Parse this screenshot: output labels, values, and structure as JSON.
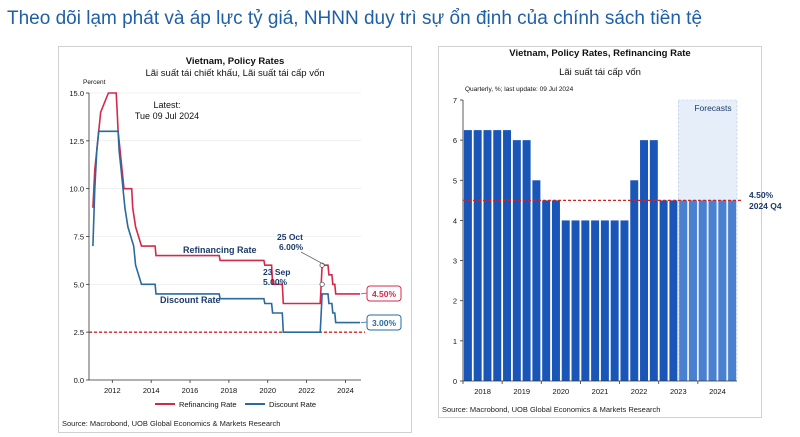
{
  "page": {
    "title": "Theo dõi lạm phát và áp lực tỷ giá, NHNN duy trì sự ổn định của chính sách tiền tệ"
  },
  "colors": {
    "title": "#1f5fa8",
    "refinancing": "#d6284a",
    "discount": "#2a6a9e",
    "bar": "#1a56b8",
    "forecast_bar": "#4a80d0",
    "dashed": "#d62020"
  },
  "chart_data": [
    {
      "type": "line",
      "title": "Vietnam, Policy Rates",
      "subtitle": "Lãi suất tái chiết khấu, Lãi suất tái cấp vốn",
      "ylabel": "Percent",
      "ylim": [
        0,
        15
      ],
      "yticks": [
        "0.0",
        "2.5",
        "5.0",
        "7.5",
        "10.0",
        "12.5",
        "15.0"
      ],
      "xlim": [
        2010.8,
        2024.8
      ],
      "xticks": [
        "2012",
        "2014",
        "2016",
        "2018",
        "2020",
        "2022",
        "2024"
      ],
      "reference_line": 2.5,
      "series": [
        {
          "name": "Refinancing Rate",
          "label": "Refinancing Rate",
          "points": [
            [
              2011.0,
              9
            ],
            [
              2011.1,
              11
            ],
            [
              2011.2,
              12
            ],
            [
              2011.3,
              13
            ],
            [
              2011.4,
              14
            ],
            [
              2011.8,
              15
            ],
            [
              2012.2,
              15
            ],
            [
              2012.25,
              14
            ],
            [
              2012.3,
              13
            ],
            [
              2012.4,
              12
            ],
            [
              2012.5,
              11
            ],
            [
              2012.6,
              10
            ],
            [
              2013.0,
              10
            ],
            [
              2013.05,
              9
            ],
            [
              2013.2,
              8
            ],
            [
              2013.5,
              7
            ],
            [
              2014.2,
              7
            ],
            [
              2014.25,
              6.5
            ],
            [
              2017.5,
              6.5
            ],
            [
              2017.55,
              6.25
            ],
            [
              2019.8,
              6.25
            ],
            [
              2019.85,
              6
            ],
            [
              2020.2,
              6
            ],
            [
              2020.25,
              5
            ],
            [
              2020.75,
              5
            ],
            [
              2020.8,
              4
            ],
            [
              2022.7,
              4
            ],
            [
              2022.75,
              5
            ],
            [
              2022.8,
              6
            ],
            [
              2023.1,
              6
            ],
            [
              2023.15,
              5.5
            ],
            [
              2023.3,
              5.5
            ],
            [
              2023.35,
              5
            ],
            [
              2023.45,
              5
            ],
            [
              2023.5,
              4.5
            ],
            [
              2024.75,
              4.5
            ]
          ],
          "end_value_label": "4.50%"
        },
        {
          "name": "Discount Rate",
          "label": "Discount Rate",
          "points": [
            [
              2011.0,
              7
            ],
            [
              2011.1,
              10
            ],
            [
              2011.2,
              12
            ],
            [
              2011.3,
              13
            ],
            [
              2012.3,
              13
            ],
            [
              2012.35,
              12
            ],
            [
              2012.45,
              11
            ],
            [
              2012.55,
              10
            ],
            [
              2012.65,
              9
            ],
            [
              2012.8,
              8
            ],
            [
              2013.1,
              7
            ],
            [
              2013.2,
              6
            ],
            [
              2013.5,
              5
            ],
            [
              2014.2,
              5
            ],
            [
              2014.25,
              4.5
            ],
            [
              2017.5,
              4.5
            ],
            [
              2017.55,
              4.25
            ],
            [
              2019.8,
              4.25
            ],
            [
              2019.85,
              4
            ],
            [
              2020.2,
              4
            ],
            [
              2020.25,
              3.5
            ],
            [
              2020.75,
              3.5
            ],
            [
              2020.8,
              2.5
            ],
            [
              2022.7,
              2.5
            ],
            [
              2022.75,
              3.5
            ],
            [
              2022.8,
              4.5
            ],
            [
              2023.1,
              4.5
            ],
            [
              2023.15,
              4
            ],
            [
              2023.3,
              4
            ],
            [
              2023.35,
              3.5
            ],
            [
              2023.45,
              3.5
            ],
            [
              2023.5,
              3
            ],
            [
              2024.75,
              3
            ]
          ],
          "end_value_label": "3.00%"
        }
      ],
      "annotations": {
        "latest_line1": "Latest:",
        "latest_line2": "Tue 09 Jul 2024",
        "oct_line1": "25 Oct",
        "oct_line2": "6.00%",
        "sep_line1": "23 Sep",
        "sep_line2": "5.00%"
      },
      "legend": [
        "Refinancing Rate",
        "Discount Rate"
      ],
      "source": "Source: Macrobond, UOB Global Economics & Markets Research"
    },
    {
      "type": "bar",
      "title": "Vietnam, Policy Rates, Refinancing Rate",
      "subtitle": "Lãi suất tái cấp vốn",
      "note": "Quarterly, %; last update: 09 Jul 2024",
      "ylim": [
        0,
        7
      ],
      "yticks": [
        "0",
        "1",
        "2",
        "3",
        "4",
        "5",
        "6",
        "7"
      ],
      "xticks": [
        "2018",
        "2019",
        "2020",
        "2021",
        "2022",
        "2023",
        "2024"
      ],
      "first_year": 2018,
      "values": [
        6.25,
        6.25,
        6.25,
        6.25,
        6.25,
        6,
        6,
        5,
        4.5,
        4.5,
        4,
        4,
        4,
        4,
        4,
        4,
        4,
        5,
        6,
        6,
        4.5,
        4.5,
        4.5,
        4.5,
        4.5,
        4.5,
        4.5,
        4.5
      ],
      "forecast_start_index": 22,
      "forecast_label": "Forecasts",
      "reference_line": 4.5,
      "callout_line1": "4.50%",
      "callout_line2": "2024 Q4",
      "source": "Source: Macrobond, UOB Global Economics & Markets Research"
    }
  ]
}
